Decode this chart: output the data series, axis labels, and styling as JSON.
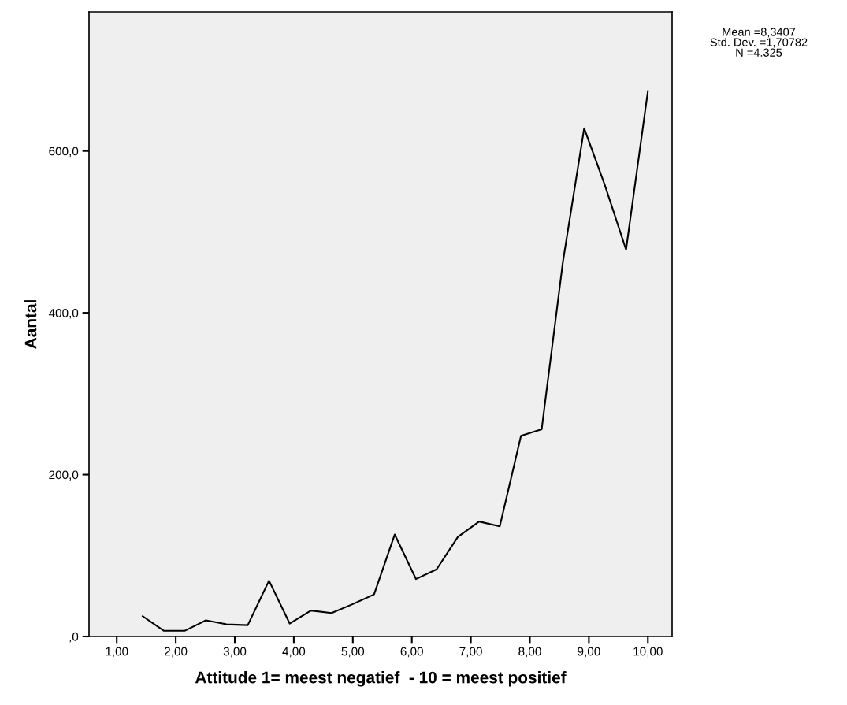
{
  "chart_data": {
    "type": "line",
    "xlabel": "Attitude 1= meest negatief  - 10 = meest positief",
    "ylabel": "Aantal",
    "x": [
      1.44,
      1.8,
      2.15,
      2.51,
      2.86,
      3.22,
      3.58,
      3.93,
      4.29,
      4.64,
      5.0,
      5.36,
      5.71,
      6.07,
      6.42,
      6.78,
      7.14,
      7.49,
      7.85,
      8.2,
      8.56,
      8.92,
      9.27,
      9.63,
      10.0
    ],
    "series": [
      {
        "color": "#000000",
        "values": [
          25,
          7,
          7,
          20,
          15,
          14,
          69,
          16,
          32,
          29,
          40,
          52,
          126,
          71,
          83,
          123,
          142,
          136,
          248,
          256,
          463,
          628,
          558,
          478,
          674
        ]
      }
    ],
    "xlim": [
      0.53,
      10.41
    ],
    "ylim": [
      0,
      772
    ],
    "xticks": [
      {
        "value": 1,
        "label": "1,00"
      },
      {
        "value": 2,
        "label": "2,00"
      },
      {
        "value": 3,
        "label": "3,00"
      },
      {
        "value": 4,
        "label": "4,00"
      },
      {
        "value": 5,
        "label": "5,00"
      },
      {
        "value": 6,
        "label": "6,00"
      },
      {
        "value": 7,
        "label": "7,00"
      },
      {
        "value": 8,
        "label": "8,00"
      },
      {
        "value": 9,
        "label": "9,00"
      },
      {
        "value": 10,
        "label": "10,00"
      }
    ],
    "yticks": [
      {
        "value": 0,
        "label": ",0"
      },
      {
        "value": 200,
        "label": "200,0"
      },
      {
        "value": 400,
        "label": "400,0"
      },
      {
        "value": 600,
        "label": "600,0"
      }
    ],
    "annotations": [
      "Mean =8,3407\nStd. Dev. =1,70782\nN =4.325"
    ],
    "grid": false,
    "legend": false,
    "marker": "none",
    "line_style": "solid"
  }
}
